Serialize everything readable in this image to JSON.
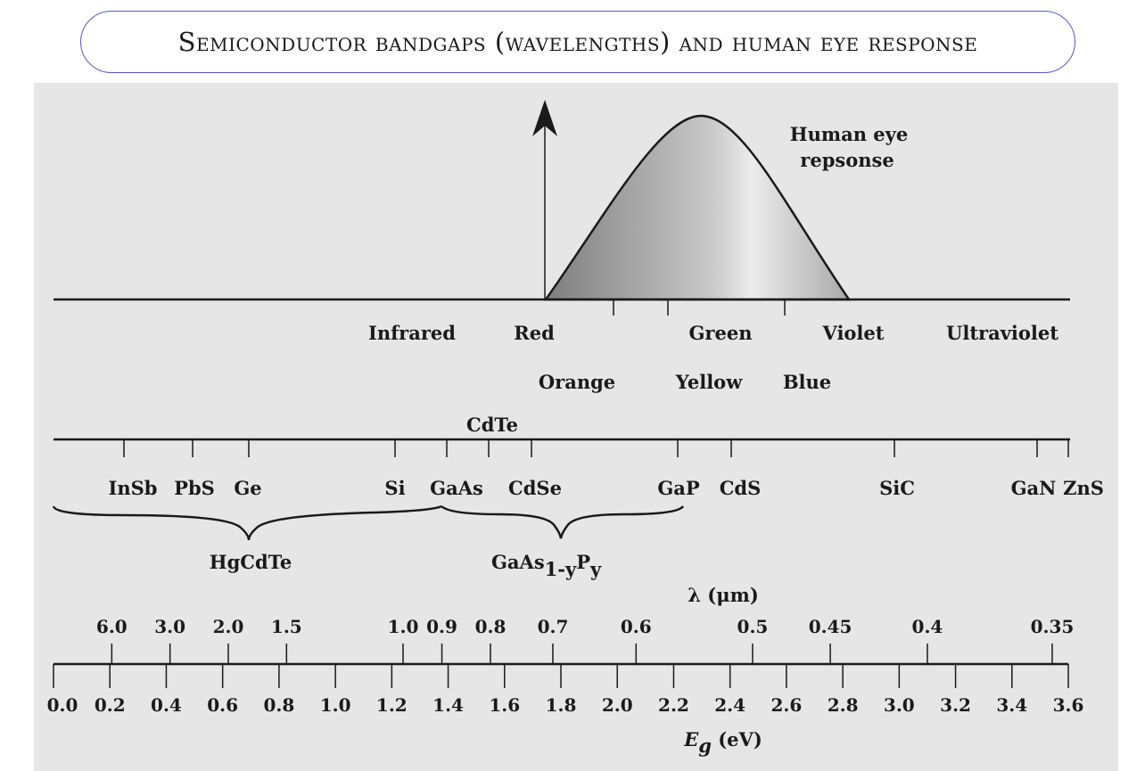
{
  "title": "Semiconductor bandgaps (wavelengths) and human eye response",
  "eye_response_label_line1": "Human eye",
  "eye_response_label_line2": "repsonse",
  "spectrum_labels": {
    "row1": [
      "Infrared",
      "Red",
      "Green",
      "Violet",
      "Ultraviolet"
    ],
    "row2": [
      "Orange",
      "Yellow",
      "Blue"
    ]
  },
  "materials": {
    "above": "CdTe",
    "below": [
      "InSb",
      "PbS",
      "Ge",
      "Si",
      "GaAs",
      "CdSe",
      "GaP",
      "CdS",
      "SiC",
      "GaN",
      "ZnS"
    ]
  },
  "alloys": {
    "hgcdte": "HgCdTe",
    "gaasp_base": "GaAs",
    "gaasp_sub1": "1-y",
    "gaasp_mid": "P",
    "gaasp_sub2": "y"
  },
  "wavelength_axis": {
    "label": "λ (μm)",
    "ticks": [
      "6.0",
      "3.0",
      "2.0",
      "1.5",
      "1.0",
      "0.9",
      "0.8",
      "0.7",
      "0.6",
      "0.5",
      "0.45",
      "0.4",
      "0.35"
    ]
  },
  "energy_axis": {
    "label_symbol": "E",
    "label_sub": "g",
    "label_unit": " (eV)",
    "ticks": [
      "0.0",
      "0.2",
      "0.4",
      "0.6",
      "0.8",
      "1.0",
      "1.2",
      "1.4",
      "1.6",
      "1.8",
      "2.0",
      "2.2",
      "2.4",
      "2.6",
      "2.8",
      "3.0",
      "3.2",
      "3.4",
      "3.6"
    ]
  }
}
